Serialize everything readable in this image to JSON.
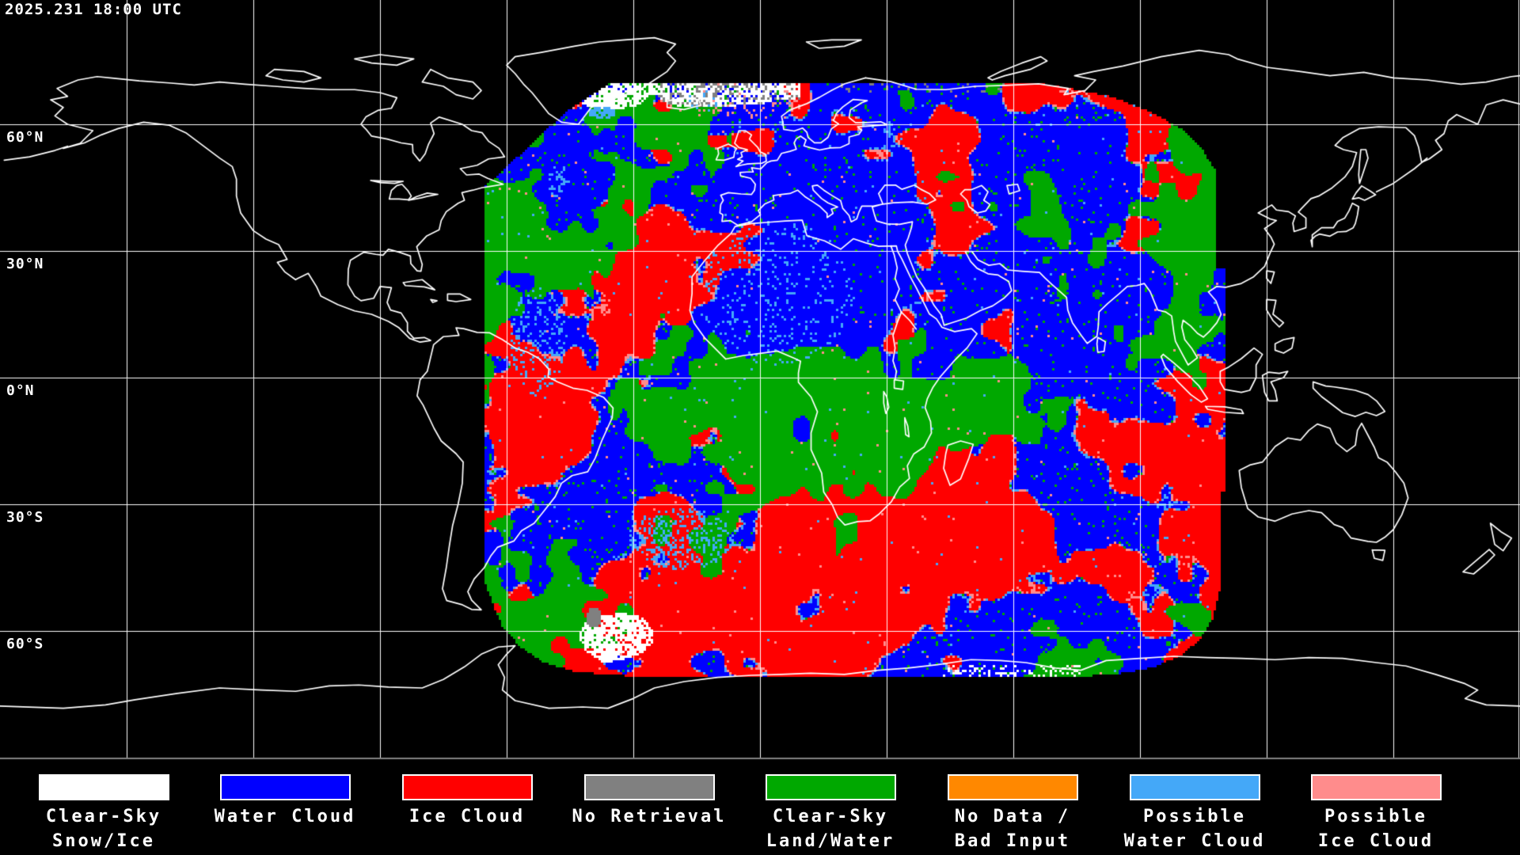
{
  "header": {
    "timestamp": "2025.231 18:00 UTC"
  },
  "map": {
    "projection": "equirectangular",
    "background": "#000000",
    "coastline_color": "#ffffff",
    "grid": {
      "lat_step_deg": 30,
      "lon_step_deg": 30,
      "color": "#ffffff"
    },
    "separator_color": "#828282",
    "latitude_labels": [
      {
        "text": "60°N",
        "lat": 60
      },
      {
        "text": "30°N",
        "lat": 30
      },
      {
        "text": "0°N",
        "lat": 0
      },
      {
        "text": "30°S",
        "lat": -30
      },
      {
        "text": "60°S",
        "lat": -60
      }
    ],
    "palette": {
      "clear_sky_snow_ice": "#ffffff",
      "water_cloud": "#0000ff",
      "ice_cloud": "#ff0000",
      "no_retrieval": "#808080",
      "clear_sky_land_water": "#00a800",
      "no_data_bad_input": "#ff8800",
      "possible_water_cloud": "#44a8f8",
      "possible_ice_cloud": "#ff8c8c"
    }
  },
  "legend": {
    "items": [
      {
        "id": "clear-sky-snow-ice",
        "label_lines": [
          "Clear-Sky",
          "Snow/Ice"
        ],
        "color": "#ffffff"
      },
      {
        "id": "water-cloud",
        "label_lines": [
          "Water Cloud"
        ],
        "color": "#0000ff"
      },
      {
        "id": "ice-cloud",
        "label_lines": [
          "Ice Cloud"
        ],
        "color": "#ff0000"
      },
      {
        "id": "no-retrieval",
        "label_lines": [
          "No Retrieval"
        ],
        "color": "#808080"
      },
      {
        "id": "clear-sky-land-water",
        "label_lines": [
          "Clear-Sky",
          "Land/Water"
        ],
        "color": "#00a800"
      },
      {
        "id": "no-data-bad-input",
        "label_lines": [
          "No Data /",
          "Bad Input"
        ],
        "color": "#ff8800"
      },
      {
        "id": "possible-water-cloud",
        "label_lines": [
          "Possible",
          "Water Cloud"
        ],
        "color": "#44a8f8"
      },
      {
        "id": "possible-ice-cloud",
        "label_lines": [
          "Possible",
          "Ice Cloud"
        ],
        "color": "#ff8c8c"
      }
    ]
  }
}
